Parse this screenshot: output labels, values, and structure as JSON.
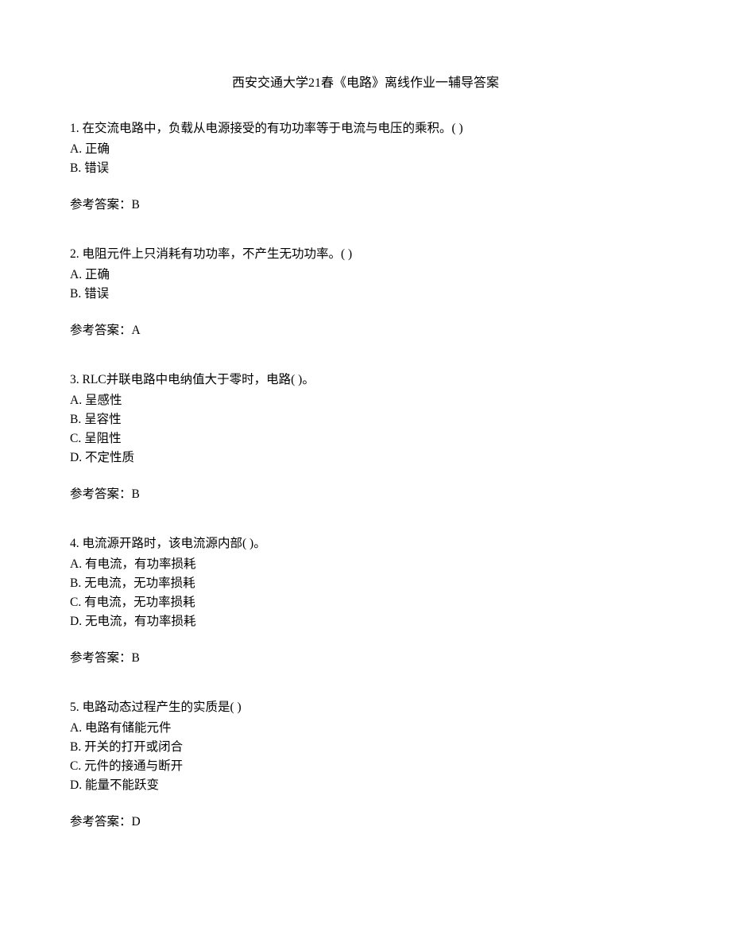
{
  "title": "西安交通大学21春《电路》离线作业一辅导答案",
  "questions": [
    {
      "number": "1.",
      "text": "在交流电路中，负载从电源接受的有功功率等于电流与电压的乘积。(   )",
      "options": [
        "A. 正确",
        "B. 错误"
      ],
      "answer_label": "参考答案：",
      "answer": "B"
    },
    {
      "number": "2.",
      "text": "电阻元件上只消耗有功功率，不产生无功功率。(   )",
      "options": [
        "A. 正确",
        "B. 错误"
      ],
      "answer_label": "参考答案：",
      "answer": "A"
    },
    {
      "number": "3.",
      "text": "RLC并联电路中电纳值大于零时，电路(   )。",
      "options": [
        "A. 呈感性",
        "B. 呈容性",
        "C. 呈阻性",
        "D. 不定性质"
      ],
      "answer_label": "参考答案：",
      "answer": "B"
    },
    {
      "number": "4.",
      "text": "电流源开路时，该电流源内部(   )。",
      "options": [
        "A. 有电流，有功率损耗",
        "B. 无电流，无功率损耗",
        "C. 有电流，无功率损耗",
        "D. 无电流，有功率损耗"
      ],
      "answer_label": "参考答案：",
      "answer": "B"
    },
    {
      "number": "5.",
      "text": "电路动态过程产生的实质是(   )",
      "options": [
        "A. 电路有储能元件",
        "B. 开关的打开或闭合",
        "C. 元件的接通与断开",
        "D. 能量不能跃变"
      ],
      "answer_label": "参考答案：",
      "answer": "D"
    }
  ]
}
